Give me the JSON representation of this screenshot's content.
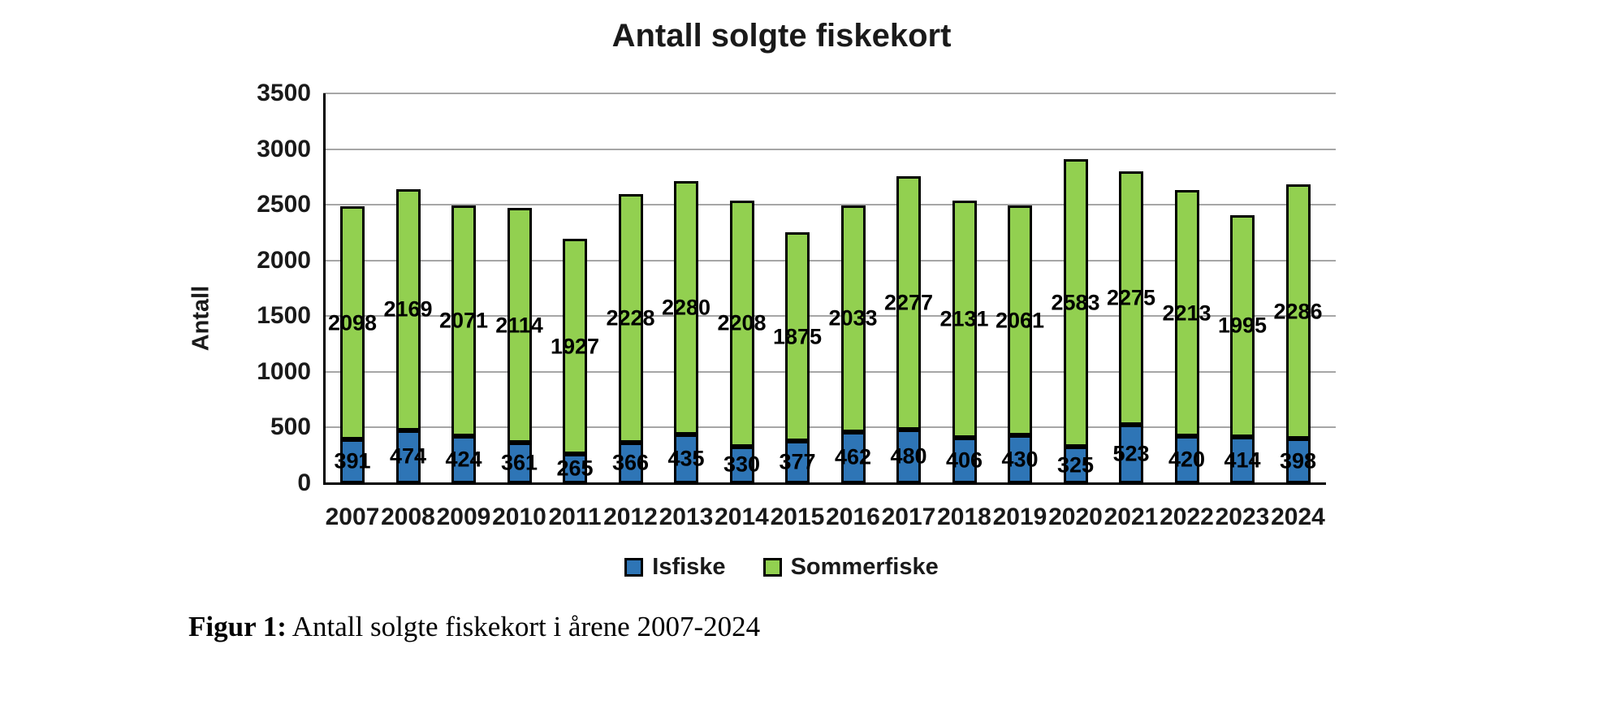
{
  "chart_data": {
    "type": "bar",
    "stacked": true,
    "title": "Antall solgte fiskekort",
    "xlabel": "",
    "ylabel": "Antall",
    "ylim": [
      0,
      3500
    ],
    "ytick_step": 500,
    "grid": true,
    "legend_position": "bottom",
    "data_labels": "center",
    "categories": [
      "2007",
      "2008",
      "2009",
      "2010",
      "2011",
      "2012",
      "2013",
      "2014",
      "2015",
      "2016",
      "2017",
      "2018",
      "2019",
      "2020",
      "2021",
      "2022",
      "2023",
      "2024"
    ],
    "series": [
      {
        "name": "Isfiske",
        "color": "#2e75b6",
        "values": [
          391,
          474,
          424,
          361,
          265,
          366,
          435,
          330,
          377,
          462,
          480,
          406,
          430,
          325,
          523,
          420,
          414,
          398
        ]
      },
      {
        "name": "Sommerfiske",
        "color": "#92d050",
        "values": [
          2098,
          2169,
          2071,
          2114,
          1927,
          2228,
          2280,
          2208,
          1875,
          2033,
          2277,
          2131,
          2061,
          2583,
          2275,
          2213,
          1995,
          2286
        ]
      }
    ]
  },
  "colors": {
    "grid": "#a6a6a6",
    "axis": "#000000",
    "bar_border": "#000000",
    "text": "#1a1a1a"
  },
  "caption": {
    "label": "Figur 1:",
    "text": " Antall solgte fiskekort i årene 2007-2024"
  }
}
